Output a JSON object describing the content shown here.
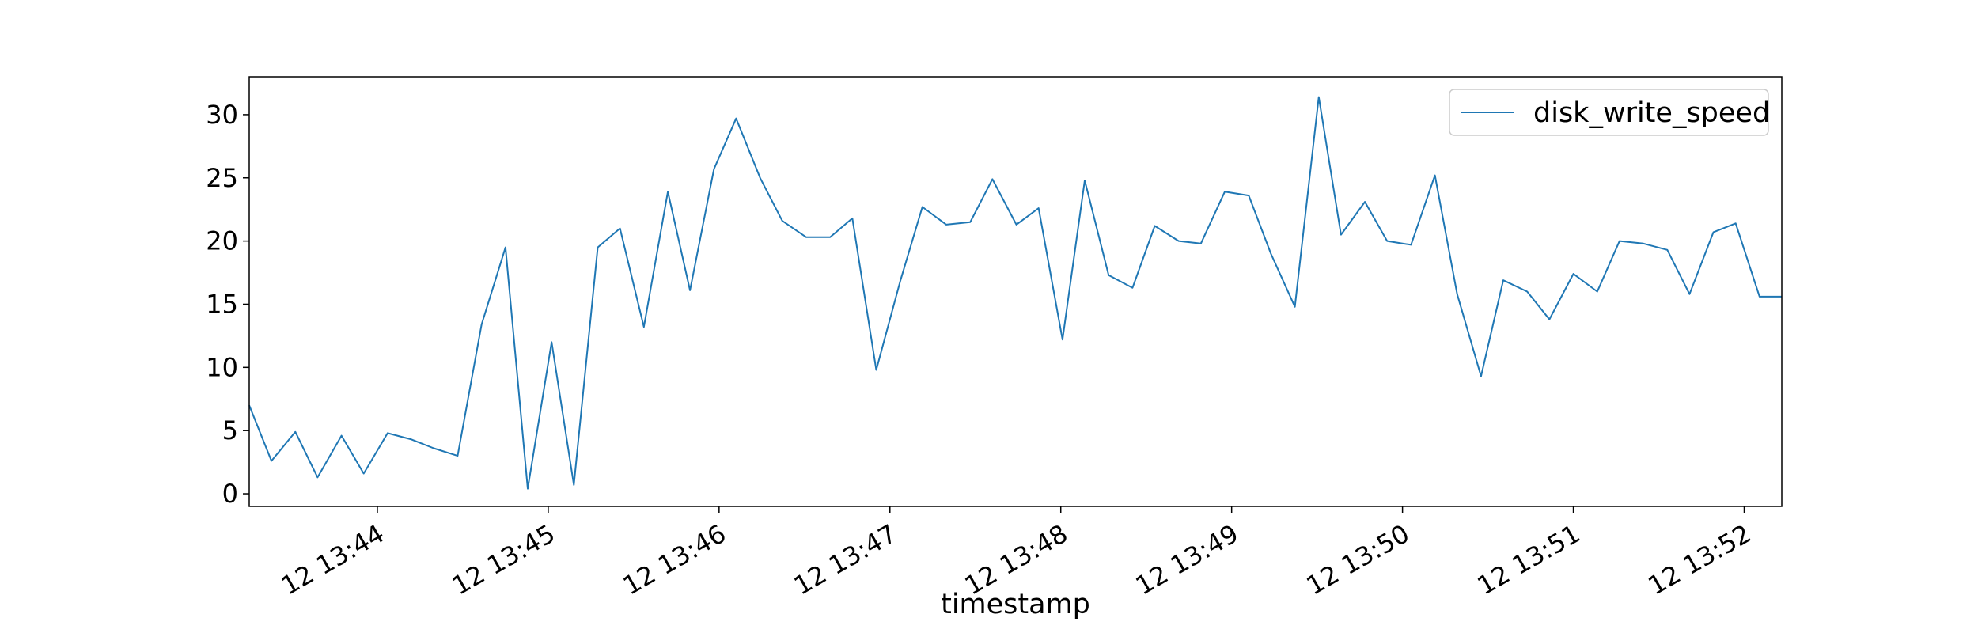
{
  "chart_data": {
    "type": "line",
    "xlabel": "timestamp",
    "ylabel": "",
    "ylim": [
      -1,
      33
    ],
    "yticks": [
      0,
      5,
      10,
      15,
      20,
      25,
      30
    ],
    "xticks": [
      {
        "t": 44,
        "label": "12 13:44"
      },
      {
        "t": 45,
        "label": "12 13:45"
      },
      {
        "t": 46,
        "label": "12 13:46"
      },
      {
        "t": 47,
        "label": "12 13:47"
      },
      {
        "t": 48,
        "label": "12 13:48"
      },
      {
        "t": 49,
        "label": "12 13:49"
      },
      {
        "t": 50,
        "label": "12 13:50"
      },
      {
        "t": 51,
        "label": "12 13:51"
      },
      {
        "t": 52,
        "label": "12 13:52"
      }
    ],
    "xlim": [
      43.25,
      52.22
    ],
    "x_unit": "minutes after 13:00 on day 12",
    "legend": {
      "position": "top-right"
    },
    "color": "#1f77b4",
    "series": [
      {
        "name": "disk_write_speed",
        "x": [
          43.25,
          43.38,
          43.52,
          43.65,
          43.79,
          43.92,
          44.06,
          44.2,
          44.33,
          44.47,
          44.61,
          44.75,
          44.88,
          45.02,
          45.15,
          45.29,
          45.42,
          45.56,
          45.7,
          45.83,
          45.97,
          46.1,
          46.24,
          46.37,
          46.51,
          46.65,
          46.78,
          46.92,
          47.06,
          47.19,
          47.33,
          47.47,
          47.6,
          47.74,
          47.87,
          48.01,
          48.14,
          48.28,
          48.42,
          48.55,
          48.69,
          48.82,
          48.96,
          49.1,
          49.23,
          49.37,
          49.51,
          49.64,
          49.78,
          49.91,
          50.05,
          50.19,
          50.32,
          50.46,
          50.59,
          50.73,
          50.86,
          51.0,
          51.14,
          51.27,
          51.41,
          51.55,
          51.68,
          51.82,
          51.95,
          52.09,
          52.22
        ],
        "y": [
          7.0,
          2.6,
          4.9,
          1.3,
          4.6,
          1.6,
          4.8,
          4.3,
          3.6,
          3.0,
          13.4,
          19.5,
          0.4,
          12.0,
          0.7,
          19.5,
          21.0,
          13.2,
          23.9,
          16.1,
          25.7,
          29.7,
          25.0,
          21.6,
          20.3,
          20.3,
          21.8,
          9.8,
          16.8,
          22.7,
          21.3,
          21.5,
          24.9,
          21.3,
          22.6,
          12.2,
          24.8,
          17.3,
          16.3,
          21.2,
          20.0,
          19.8,
          23.9,
          23.6,
          19.0,
          14.8,
          31.4,
          20.5,
          23.1,
          20.0,
          19.7,
          25.2,
          15.8,
          9.3,
          16.9,
          16.0,
          13.8,
          17.4,
          16.0,
          20.0,
          19.8,
          19.3,
          15.8,
          20.7,
          21.4,
          15.6,
          15.6
        ]
      }
    ]
  }
}
